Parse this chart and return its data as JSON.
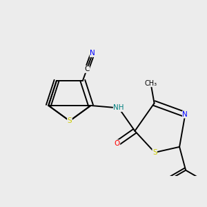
{
  "bg_color": "#ececec",
  "atom_colors": {
    "C": "#000000",
    "N": "#0000ff",
    "O": "#ff0000",
    "S": "#cccc00",
    "H": "#008080"
  },
  "figsize": [
    3.0,
    3.0
  ],
  "dpi": 100,
  "lw": 1.4,
  "fs": 7.5
}
